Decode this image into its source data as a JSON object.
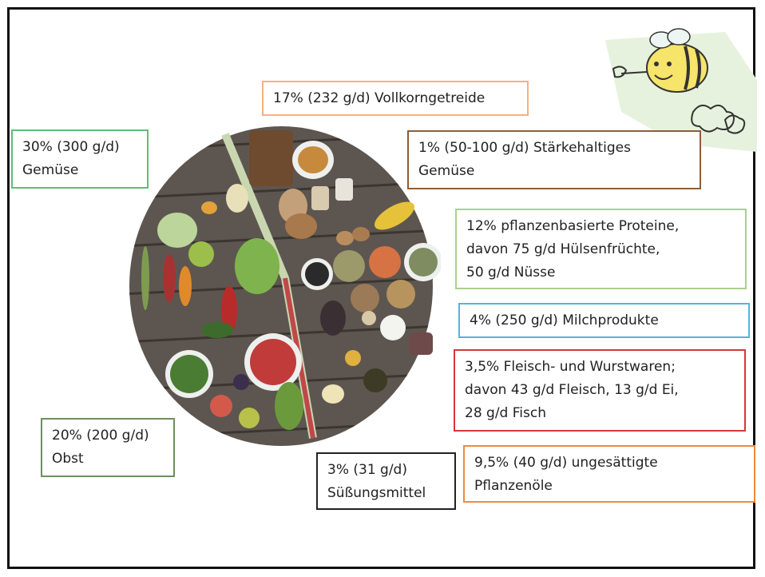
{
  "labels": {
    "vollkorn": {
      "line1": "17% (232 g/d) Vollkorngetreide",
      "color": "#f4b183"
    },
    "gemuese": {
      "line1": "30% (300 g/d)",
      "line2": "Gemüse",
      "color": "#5cbf7a"
    },
    "staerke": {
      "line1": "1% (50-100 g/d) Stärkehaltiges",
      "line2": "Gemüse",
      "color": "#8b5e3c"
    },
    "proteine": {
      "line1": "12% pflanzenbasierte Proteine,",
      "line2": "davon 75 g/d Hülsenfrüchte,",
      "line3": "50 g/d Nüsse",
      "color": "#a9d18e"
    },
    "milch": {
      "line1": "4% (250 g/d) Milchprodukte",
      "color": "#4fb6e0"
    },
    "fleisch": {
      "line1": "3,5% Fleisch- und Wurstwaren;",
      "line2": "davon 43 g/d Fleisch, 13 g/d Ei,",
      "line3": "28 g/d Fisch",
      "color": "#d9353f"
    },
    "obst": {
      "line1": "20% (200 g/d)",
      "line2": "Obst",
      "color": "#6b8f5e"
    },
    "suess": {
      "line1": "3% (31 g/d)",
      "line2": "Süßungsmittel",
      "color": "#222222"
    },
    "oele": {
      "line1": "9,5% (40 g/d) ungesättigte",
      "line2": "Pflanzenöle",
      "color": "#f08a3c"
    }
  }
}
